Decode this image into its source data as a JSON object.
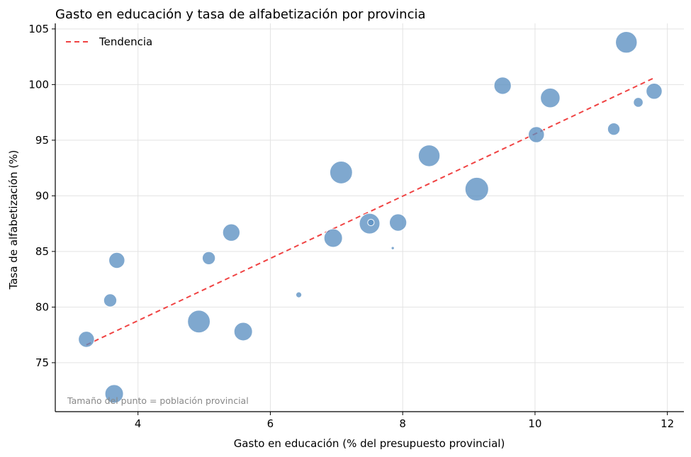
{
  "chart_data": {
    "type": "scatter",
    "title": "Gasto en educación y tasa de alfabetización por provincia",
    "xlabel": "Gasto en educación (% del presupuesto provincial)",
    "ylabel": "Tasa de alfabetización (%)",
    "xlim": [
      2.75,
      12.25
    ],
    "ylim": [
      70.6,
      105.5
    ],
    "xticks": [
      4,
      6,
      8,
      10,
      12
    ],
    "yticks": [
      75,
      80,
      85,
      90,
      95,
      100,
      105
    ],
    "grid": true,
    "legend": {
      "position": "top-left",
      "entries": [
        "Tendencia"
      ]
    },
    "note": "Tamaño del punto = población provincial",
    "colors": {
      "points": "#5b8fc1",
      "trend": "#f04343"
    },
    "trend": {
      "x": [
        3.22,
        11.8
      ],
      "y": [
        76.6,
        100.6
      ]
    },
    "points": [
      {
        "x": 3.22,
        "y": 77.1,
        "size": 3
      },
      {
        "x": 3.58,
        "y": 80.6,
        "size": 2
      },
      {
        "x": 3.64,
        "y": 72.2,
        "size": 4
      },
      {
        "x": 3.68,
        "y": 84.2,
        "size": 3
      },
      {
        "x": 4.92,
        "y": 78.7,
        "size": 6
      },
      {
        "x": 5.07,
        "y": 84.4,
        "size": 2
      },
      {
        "x": 5.41,
        "y": 86.7,
        "size": 3.5
      },
      {
        "x": 5.59,
        "y": 77.8,
        "size": 4
      },
      {
        "x": 6.43,
        "y": 81.1,
        "size": 0.4
      },
      {
        "x": 6.95,
        "y": 86.2,
        "size": 4
      },
      {
        "x": 7.07,
        "y": 92.1,
        "size": 6
      },
      {
        "x": 7.5,
        "y": 87.5,
        "size": 5
      },
      {
        "x": 7.52,
        "y": 87.6,
        "size": 0.5
      },
      {
        "x": 7.85,
        "y": 85.3,
        "size": 0.1
      },
      {
        "x": 7.93,
        "y": 87.6,
        "size": 3.5
      },
      {
        "x": 8.4,
        "y": 93.6,
        "size": 5.5
      },
      {
        "x": 9.12,
        "y": 90.6,
        "size": 6.5
      },
      {
        "x": 9.51,
        "y": 99.9,
        "size": 3.5
      },
      {
        "x": 10.02,
        "y": 95.5,
        "size": 3
      },
      {
        "x": 10.23,
        "y": 98.8,
        "size": 4.5
      },
      {
        "x": 11.19,
        "y": 96.0,
        "size": 1.8
      },
      {
        "x": 11.38,
        "y": 103.8,
        "size": 5.5
      },
      {
        "x": 11.56,
        "y": 98.4,
        "size": 1.1
      },
      {
        "x": 11.8,
        "y": 99.4,
        "size": 3
      }
    ]
  }
}
